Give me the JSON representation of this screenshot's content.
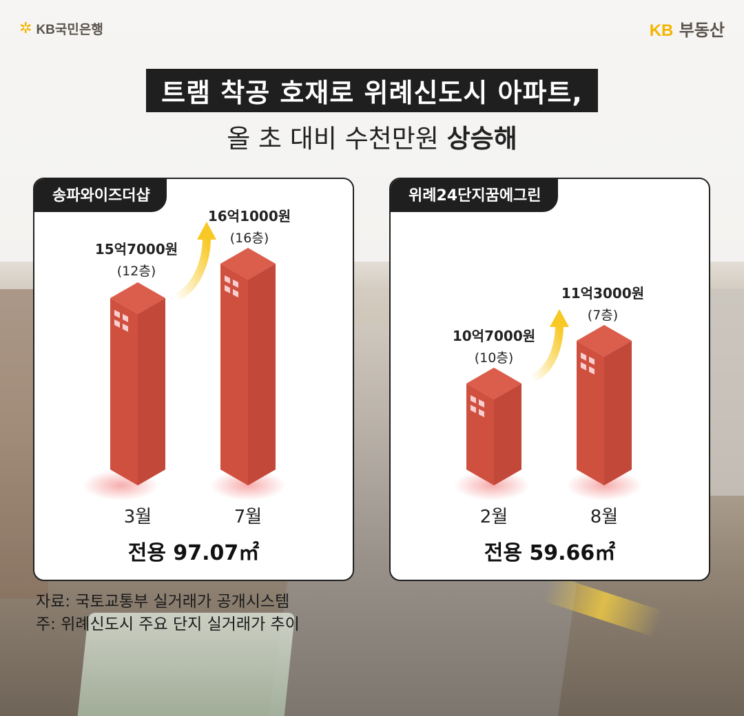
{
  "brand": {
    "left_logo": "KB국민은행",
    "right_logo_mark": "KB",
    "right_logo_name": "부동산",
    "accent": "#f4b400"
  },
  "title": {
    "line1": "트램 착공 호재로 위례신도시 아파트,",
    "line2_normal": "올 초 대비 수천만원 ",
    "line2_bold": "상승해"
  },
  "cards": [
    {
      "name": "송파와이즈더샵",
      "before": {
        "month": "3월",
        "price": "15억7000원",
        "floor": "(12층)"
      },
      "after": {
        "month": "7월",
        "price": "16억1000원",
        "floor": "(16층)"
      },
      "area": "전용 97.07㎡"
    },
    {
      "name": "위례24단지꿈에그린",
      "before": {
        "month": "2월",
        "price": "10억7000원",
        "floor": "(10층)"
      },
      "after": {
        "month": "8월",
        "price": "11억3000원",
        "floor": "(7층)"
      },
      "area": "전용 59.66㎡"
    }
  ],
  "source": {
    "line1": "자료: 국토교통부 실거래가 공개시스템",
    "line2": "주: 위례신도시 주요 단지 실거래가 추이"
  },
  "colors": {
    "building_front": "#d0503f",
    "building_side": "#c2483a",
    "building_top": "#db5d4b",
    "arrow": "#f8c824"
  }
}
